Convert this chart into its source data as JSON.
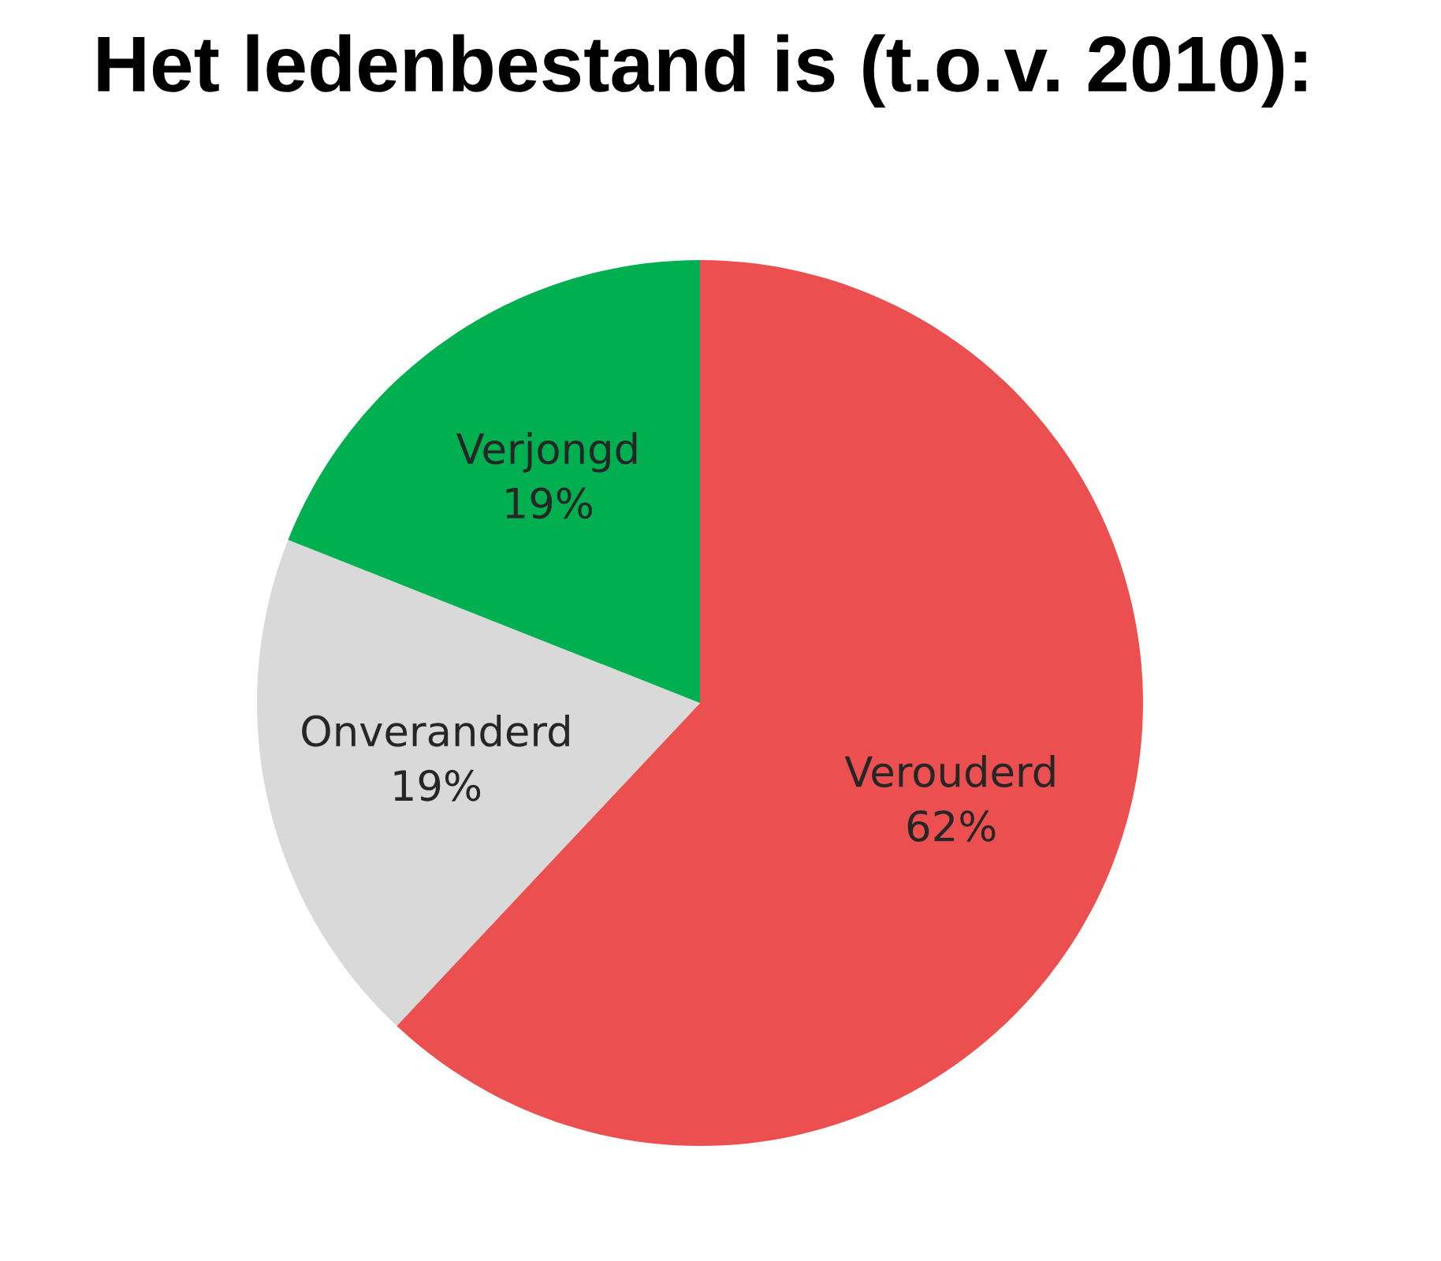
{
  "chart_data": {
    "type": "pie",
    "title": "Het ledenbestand is (t.o.v. 2010):",
    "categories": [
      "Verouderd",
      "Onveranderd",
      "Verjongd"
    ],
    "values": [
      62,
      19,
      19
    ],
    "value_labels": [
      "62%",
      "19%",
      "19%"
    ],
    "colors": [
      "#eb4f4f",
      "#d9d9d9",
      "#00b050"
    ]
  }
}
